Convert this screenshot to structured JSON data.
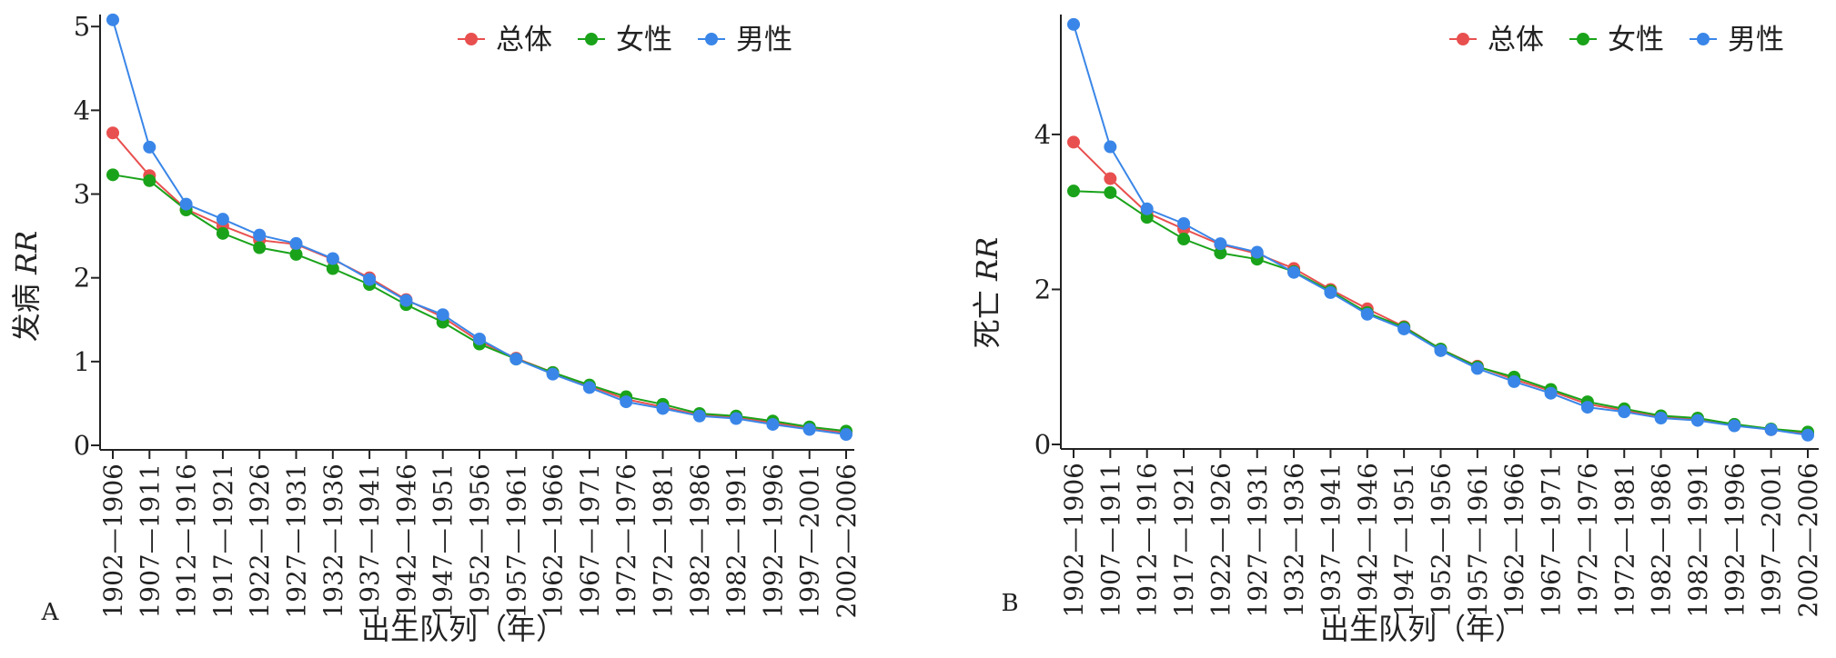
{
  "chart_data": [
    {
      "type": "line",
      "panel_label": "A",
      "ylabel_main": "发病",
      "ylabel_italic": "RR",
      "xlabel": "出生队列（年）",
      "ylim": [
        0,
        5.1
      ],
      "yticks": [
        0,
        1,
        2,
        3,
        4,
        5
      ],
      "categories": [
        "1902—1906",
        "1907—1911",
        "1912—1916",
        "1917—1921",
        "1922—1926",
        "1927—1931",
        "1932—1936",
        "1937—1941",
        "1942—1946",
        "1947—1951",
        "1952—1956",
        "1957—1961",
        "1962—1966",
        "1967—1971",
        "1972—1976",
        "1972—1981",
        "1982—1986",
        "1982—1991",
        "1992—1996",
        "1997—2001",
        "2002—2006"
      ],
      "legend_position": "top-right",
      "series": [
        {
          "name": "总体",
          "color": "#e8504f",
          "values": [
            3.73,
            3.22,
            2.82,
            2.62,
            2.45,
            2.4,
            2.22,
            2.0,
            1.74,
            1.53,
            1.24,
            1.04,
            0.87,
            0.71,
            0.55,
            0.46,
            0.36,
            0.34,
            0.27,
            0.2,
            0.15
          ]
        },
        {
          "name": "女性",
          "color": "#1aa31a",
          "values": [
            3.23,
            3.16,
            2.81,
            2.53,
            2.36,
            2.28,
            2.11,
            1.92,
            1.68,
            1.47,
            1.21,
            1.03,
            0.87,
            0.72,
            0.58,
            0.49,
            0.38,
            0.35,
            0.29,
            0.22,
            0.17
          ]
        },
        {
          "name": "男性",
          "color": "#3a86e8",
          "values": [
            5.08,
            3.56,
            2.88,
            2.7,
            2.51,
            2.41,
            2.23,
            1.98,
            1.73,
            1.56,
            1.27,
            1.03,
            0.85,
            0.69,
            0.52,
            0.44,
            0.35,
            0.32,
            0.25,
            0.19,
            0.13
          ]
        }
      ]
    },
    {
      "type": "line",
      "panel_label": "B",
      "ylabel_main": "死亡",
      "ylabel_italic": "RR",
      "xlabel": "出生队列（年）",
      "ylim": [
        0,
        5.5
      ],
      "yticks": [
        0,
        2,
        4
      ],
      "categories": [
        "1902—1906",
        "1907—1911",
        "1912—1916",
        "1917—1921",
        "1922—1926",
        "1927—1931",
        "1932—1936",
        "1937—1941",
        "1942—1946",
        "1947—1951",
        "1952—1956",
        "1957—1961",
        "1962—1966",
        "1967—1971",
        "1972—1976",
        "1972—1981",
        "1982—1986",
        "1982—1991",
        "1992—1996",
        "1997—2001",
        "2002—2006"
      ],
      "legend_position": "top-right",
      "series": [
        {
          "name": "总体",
          "color": "#e8504f",
          "values": [
            3.9,
            3.43,
            2.99,
            2.78,
            2.58,
            2.46,
            2.27,
            2.0,
            1.75,
            1.52,
            1.23,
            1.01,
            0.84,
            0.69,
            0.52,
            0.44,
            0.36,
            0.32,
            0.25,
            0.19,
            0.14
          ]
        },
        {
          "name": "女性",
          "color": "#1aa31a",
          "values": [
            3.27,
            3.25,
            2.93,
            2.65,
            2.47,
            2.39,
            2.23,
            1.98,
            1.7,
            1.51,
            1.23,
            1.0,
            0.87,
            0.71,
            0.55,
            0.46,
            0.37,
            0.34,
            0.26,
            0.2,
            0.16
          ]
        },
        {
          "name": "男性",
          "color": "#3a86e8",
          "values": [
            5.42,
            3.84,
            3.04,
            2.85,
            2.59,
            2.48,
            2.22,
            1.96,
            1.68,
            1.49,
            1.21,
            0.98,
            0.81,
            0.66,
            0.48,
            0.42,
            0.34,
            0.31,
            0.24,
            0.19,
            0.12
          ]
        }
      ]
    }
  ]
}
